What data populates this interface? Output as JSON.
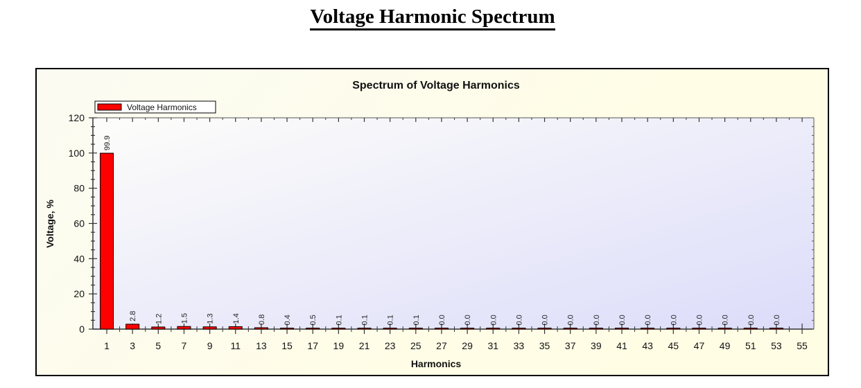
{
  "page": {
    "title": "Voltage Harmonic Spectrum"
  },
  "colors": {
    "bar": "#ff0000",
    "bar_border": "#000000",
    "panel_bg": "#fffde6",
    "plot_bg_start": "#fdfdfa",
    "plot_bg_end": "#dcdcfa"
  },
  "chart_data": {
    "type": "bar",
    "title": "Spectrum of Voltage Harmonics",
    "xlabel": "Harmonics",
    "ylabel": "Voltage, %",
    "ylim": [
      0,
      120
    ],
    "yticks": [
      0,
      20,
      40,
      60,
      80,
      100,
      120
    ],
    "xticks": [
      1,
      3,
      5,
      7,
      9,
      11,
      13,
      15,
      17,
      19,
      21,
      23,
      25,
      27,
      29,
      31,
      33,
      35,
      37,
      39,
      41,
      43,
      45,
      47,
      49,
      51,
      53,
      55
    ],
    "legend": {
      "position": "top-left",
      "entries": [
        "Voltage Harmonics"
      ]
    },
    "grid": false,
    "series": [
      {
        "name": "Voltage Harmonics",
        "categories": [
          1,
          3,
          5,
          7,
          9,
          11,
          13,
          15,
          17,
          19,
          21,
          23,
          25,
          27,
          29,
          31,
          33,
          35,
          37,
          39,
          41,
          43,
          45,
          47,
          49,
          51,
          53
        ],
        "values": [
          99.9,
          2.8,
          1.2,
          1.5,
          1.3,
          1.4,
          0.8,
          0.4,
          0.5,
          0.1,
          0.1,
          0.1,
          0.1,
          0.0,
          0.0,
          0.0,
          0.0,
          0.0,
          0.0,
          0.0,
          0.0,
          0.0,
          0.0,
          0.0,
          0.0,
          0.0,
          0.0
        ],
        "labels": [
          "99.9",
          "2.8",
          "1.2",
          "1.5",
          "1.3",
          "1.4",
          "0.8",
          "0.4",
          "0.5",
          "0.1",
          "0.1",
          "0.1",
          "0.1",
          "0.0",
          "0.0",
          "0.0",
          "0.0",
          "0.0",
          "0.0",
          "0.0",
          "0.0",
          "0.0",
          "0.0",
          "0.0",
          "0.0",
          "0.0",
          "0.0"
        ]
      }
    ]
  }
}
